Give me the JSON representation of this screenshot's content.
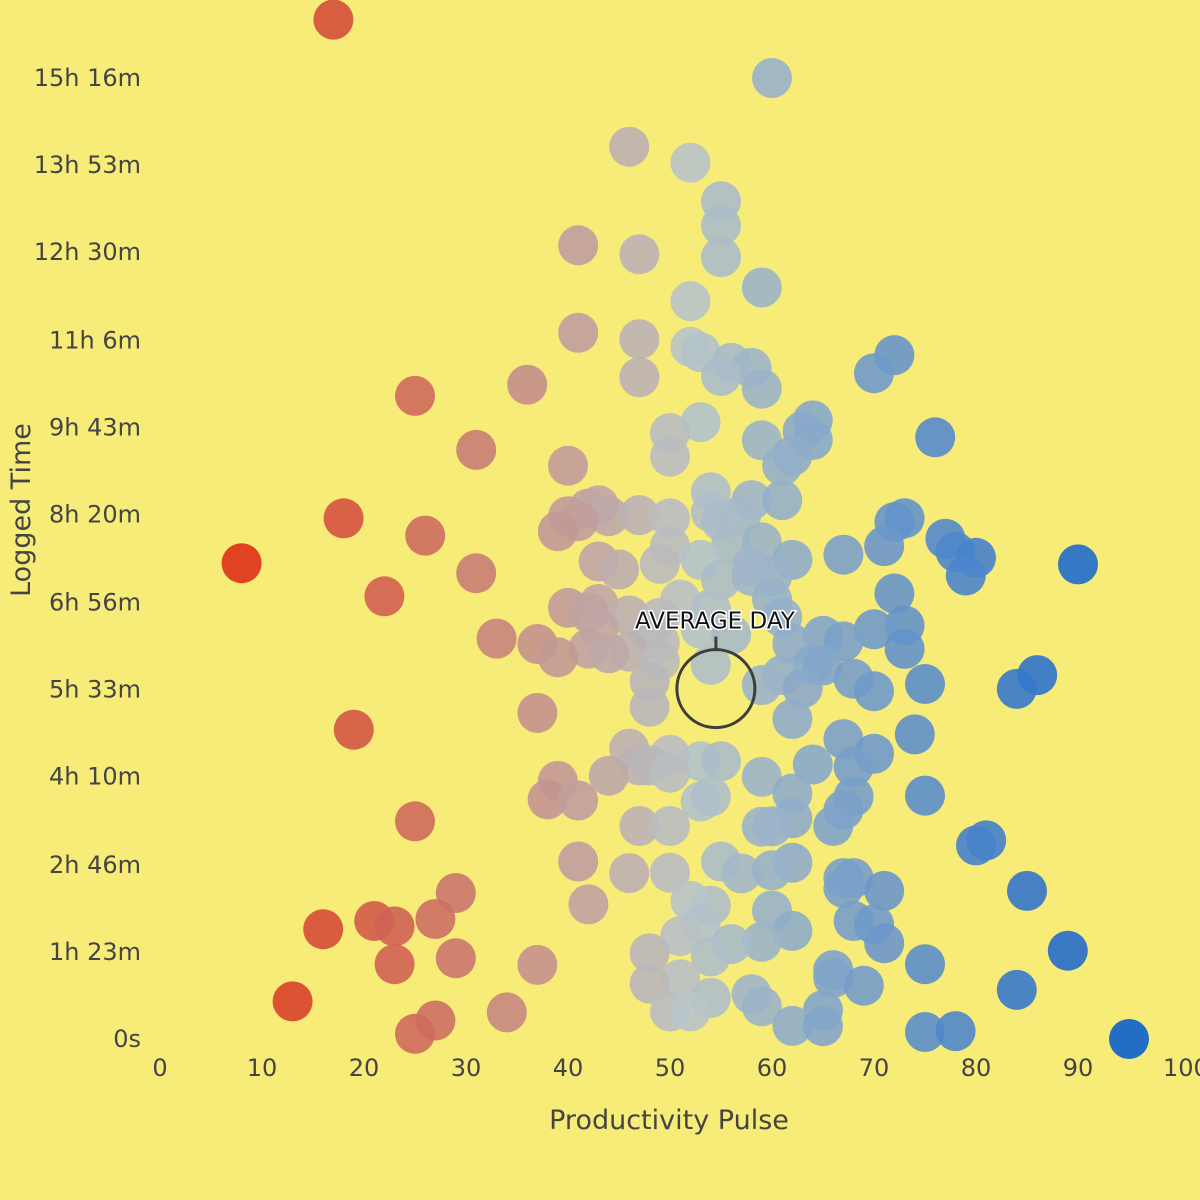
{
  "theme": {
    "background": "#f8ec78",
    "text": "#444444",
    "low_color": "#dc3118",
    "mid_color": "#b7c4c9",
    "high_color": "#0b5fcc",
    "annotation_ring": "#3d3d3d"
  },
  "chart_data": {
    "type": "scatter",
    "title": "",
    "xlabel": "Productivity Pulse",
    "ylabel": "Logged Time",
    "xlim": [
      0,
      100
    ],
    "ylim_seconds": [
      0,
      56400
    ],
    "x_ticks": [
      0,
      10,
      20,
      30,
      40,
      50,
      60,
      70,
      80,
      90,
      100
    ],
    "y_ticks": [
      {
        "label": "0s",
        "seconds": 0
      },
      {
        "label": "1h 23m",
        "seconds": 4980
      },
      {
        "label": "2h 46m",
        "seconds": 9960
      },
      {
        "label": "4h 10m",
        "seconds": 15000
      },
      {
        "label": "5h 33m",
        "seconds": 19980
      },
      {
        "label": "6h 56m",
        "seconds": 24960
      },
      {
        "label": "8h 20m",
        "seconds": 30000
      },
      {
        "label": "9h 43m",
        "seconds": 34980
      },
      {
        "label": "11h 6m",
        "seconds": 39960
      },
      {
        "label": "12h 30m",
        "seconds": 45000
      },
      {
        "label": "13h 53m",
        "seconds": 49980
      },
      {
        "label": "15h 16m",
        "seconds": 54960
      }
    ],
    "grid": false,
    "legend": "none",
    "annotation": {
      "label": "AVERAGE DAY",
      "x": 54.5,
      "y_seconds": 20040
    },
    "points": [
      [
        17,
        58300
      ],
      [
        60,
        54960
      ],
      [
        46,
        51030
      ],
      [
        52,
        50120
      ],
      [
        55,
        47910
      ],
      [
        55,
        46520
      ],
      [
        41,
        45390
      ],
      [
        47,
        44880
      ],
      [
        55,
        44710
      ],
      [
        59,
        42980
      ],
      [
        52,
        42200
      ],
      [
        47,
        40020
      ],
      [
        52,
        39580
      ],
      [
        53,
        39280
      ],
      [
        41,
        40390
      ],
      [
        72,
        39110
      ],
      [
        56,
        38670
      ],
      [
        58,
        38380
      ],
      [
        70,
        38080
      ],
      [
        55,
        37920
      ],
      [
        47,
        37850
      ],
      [
        36,
        37420
      ],
      [
        59,
        37190
      ],
      [
        25,
        36780
      ],
      [
        64,
        35380
      ],
      [
        53,
        35280
      ],
      [
        50,
        34650
      ],
      [
        63,
        34770
      ],
      [
        59,
        34240
      ],
      [
        64,
        34260
      ],
      [
        76,
        34410
      ],
      [
        31,
        33690
      ],
      [
        50,
        33310
      ],
      [
        62,
        33350
      ],
      [
        40,
        32790
      ],
      [
        61,
        32790
      ],
      [
        54,
        31270
      ],
      [
        58,
        30820
      ],
      [
        61,
        30820
      ],
      [
        42,
        30340
      ],
      [
        43,
        30530
      ],
      [
        40,
        29900
      ],
      [
        44,
        29900
      ],
      [
        47,
        29960
      ],
      [
        50,
        29780
      ],
      [
        54,
        30120
      ],
      [
        18,
        29780
      ],
      [
        57,
        29960
      ],
      [
        55,
        29620
      ],
      [
        72,
        29560
      ],
      [
        73,
        29780
      ],
      [
        41,
        29620
      ],
      [
        39,
        29040
      ],
      [
        26,
        28790
      ],
      [
        77,
        28610
      ],
      [
        50,
        28190
      ],
      [
        56,
        28340
      ],
      [
        59,
        28400
      ],
      [
        71,
        28190
      ],
      [
        78,
        27850
      ],
      [
        67,
        27700
      ],
      [
        80,
        27520
      ],
      [
        8,
        27210
      ],
      [
        90,
        27140
      ],
      [
        62,
        27400
      ],
      [
        53,
        27400
      ],
      [
        43,
        27310
      ],
      [
        49,
        27170
      ],
      [
        58,
        27000
      ],
      [
        45,
        26850
      ],
      [
        31,
        26640
      ],
      [
        79,
        26510
      ],
      [
        60,
        26450
      ],
      [
        55,
        26260
      ],
      [
        58,
        26480
      ],
      [
        22,
        25320
      ],
      [
        72,
        25480
      ],
      [
        51,
        25130
      ],
      [
        60,
        25160
      ],
      [
        40,
        24660
      ],
      [
        43,
        24880
      ],
      [
        54,
        24600
      ],
      [
        42,
        24390
      ],
      [
        46,
        24220
      ],
      [
        49,
        24090
      ],
      [
        61,
        24110
      ],
      [
        73,
        23650
      ],
      [
        43,
        23460
      ],
      [
        70,
        23430
      ],
      [
        53,
        23460
      ],
      [
        48,
        23290
      ],
      [
        56,
        23140
      ],
      [
        33,
        22900
      ],
      [
        65,
        23060
      ],
      [
        67,
        22740
      ],
      [
        62,
        22600
      ],
      [
        49,
        22690
      ],
      [
        42,
        22330
      ],
      [
        37,
        22590
      ],
      [
        73,
        22310
      ],
      [
        46,
        22150
      ],
      [
        44,
        22060
      ],
      [
        39,
        21830
      ],
      [
        49,
        21620
      ],
      [
        54,
        21400
      ],
      [
        64,
        21410
      ],
      [
        65,
        21360
      ],
      [
        86,
        20810
      ],
      [
        68,
        20600
      ],
      [
        61,
        20820
      ],
      [
        75,
        20300
      ],
      [
        59,
        20240
      ],
      [
        48,
        20450
      ],
      [
        84,
        20020
      ],
      [
        63,
        20060
      ],
      [
        70,
        19890
      ],
      [
        48,
        19000
      ],
      [
        37,
        18650
      ],
      [
        62,
        18300
      ],
      [
        19,
        17690
      ],
      [
        67,
        17150
      ],
      [
        74,
        17420
      ],
      [
        46,
        16610
      ],
      [
        50,
        16250
      ],
      [
        70,
        16310
      ],
      [
        53,
        15880
      ],
      [
        55,
        15880
      ],
      [
        64,
        15700
      ],
      [
        68,
        15560
      ],
      [
        47,
        15640
      ],
      [
        48,
        15640
      ],
      [
        50,
        15230
      ],
      [
        44,
        15060
      ],
      [
        59,
        14990
      ],
      [
        39,
        14760
      ],
      [
        62,
        14040
      ],
      [
        53,
        13580
      ],
      [
        54,
        13860
      ],
      [
        68,
        13860
      ],
      [
        75,
        13920
      ],
      [
        38,
        13700
      ],
      [
        41,
        13640
      ],
      [
        67,
        13100
      ],
      [
        62,
        12620
      ],
      [
        25,
        12450
      ],
      [
        66,
        12190
      ],
      [
        47,
        12180
      ],
      [
        50,
        12180
      ],
      [
        60,
        12160
      ],
      [
        59,
        12140
      ],
      [
        81,
        11360
      ],
      [
        80,
        11070
      ],
      [
        41,
        10150
      ],
      [
        55,
        10150
      ],
      [
        62,
        10080
      ],
      [
        46,
        9490
      ],
      [
        50,
        9510
      ],
      [
        57,
        9470
      ],
      [
        60,
        9650
      ],
      [
        67,
        9200
      ],
      [
        68,
        9200
      ],
      [
        67,
        8640
      ],
      [
        71,
        8470
      ],
      [
        85,
        8470
      ],
      [
        29,
        8350
      ],
      [
        54,
        7630
      ],
      [
        60,
        7350
      ],
      [
        52,
        7900
      ],
      [
        42,
        7700
      ],
      [
        21,
        6750
      ],
      [
        68,
        6750
      ],
      [
        27,
        6860
      ],
      [
        53,
        6560
      ],
      [
        70,
        6560
      ],
      [
        23,
        6440
      ],
      [
        16,
        6280
      ],
      [
        62,
        6180
      ],
      [
        51,
        5880
      ],
      [
        59,
        5560
      ],
      [
        71,
        5480
      ],
      [
        56,
        5430
      ],
      [
        89,
        5050
      ],
      [
        48,
        4900
      ],
      [
        54,
        4720
      ],
      [
        29,
        4620
      ],
      [
        23,
        4280
      ],
      [
        37,
        4240
      ],
      [
        75,
        4280
      ],
      [
        66,
        3940
      ],
      [
        66,
        3500
      ],
      [
        51,
        3420
      ],
      [
        48,
        3170
      ],
      [
        69,
        3050
      ],
      [
        84,
        2810
      ],
      [
        58,
        2560
      ],
      [
        54,
        2350
      ],
      [
        13,
        2150
      ],
      [
        59,
        1870
      ],
      [
        34,
        1520
      ],
      [
        65,
        1650
      ],
      [
        50,
        1570
      ],
      [
        52,
        1570
      ],
      [
        27,
        1060
      ],
      [
        62,
        750
      ],
      [
        65,
        730
      ],
      [
        25,
        300
      ],
      [
        75,
        400
      ],
      [
        78,
        450
      ],
      [
        95,
        0
      ]
    ]
  }
}
